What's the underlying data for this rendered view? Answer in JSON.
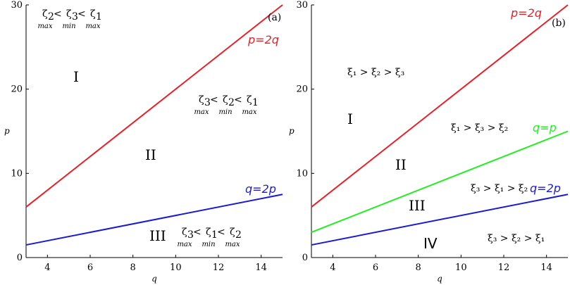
{
  "chart_data": [
    {
      "type": "line",
      "panel_label": "(a)",
      "xlabel": "q",
      "ylabel": "p",
      "xlim": [
        3,
        15
      ],
      "ylim": [
        0,
        30
      ],
      "xticks": [
        "4",
        "6",
        "8",
        "10",
        "12",
        "14"
      ],
      "yticks": [
        "0",
        "10",
        "20",
        "30"
      ],
      "series": [
        {
          "name": "p=2q",
          "color": "#e8202a",
          "x": [
            3,
            15
          ],
          "y": [
            6,
            30
          ]
        },
        {
          "name": "q=2p",
          "color": "#1a1ad4",
          "x": [
            3,
            15
          ],
          "y": [
            1.5,
            7.5
          ]
        }
      ],
      "regions": [
        {
          "label": "I",
          "ineq": [
            "ζ",
            "2",
            "max",
            " < ",
            "ζ",
            "3",
            "min",
            " < ",
            "ζ",
            "1",
            "max"
          ]
        },
        {
          "label": "II",
          "ineq": [
            "ζ",
            "3",
            "max",
            " < ",
            "ζ",
            "2",
            "min",
            " < ",
            "ζ",
            "1",
            "max"
          ]
        },
        {
          "label": "III",
          "ineq": [
            "ζ",
            "3",
            "max",
            " < ",
            "ζ",
            "1",
            "min",
            " < ",
            "ζ",
            "2",
            "max"
          ]
        }
      ]
    },
    {
      "type": "line",
      "panel_label": "(b)",
      "xlabel": "q",
      "ylabel": "p",
      "xlim": [
        3,
        15
      ],
      "ylim": [
        0,
        30
      ],
      "xticks": [
        "4",
        "6",
        "8",
        "10",
        "12",
        "14"
      ],
      "yticks": [
        "0",
        "10",
        "20",
        "30"
      ],
      "series": [
        {
          "name": "p=2q",
          "color": "#e8202a",
          "x": [
            3,
            15
          ],
          "y": [
            6,
            30
          ]
        },
        {
          "name": "q=p",
          "color": "#22ee22",
          "x": [
            3,
            15
          ],
          "y": [
            3,
            15
          ]
        },
        {
          "name": "q=2p",
          "color": "#1a1ad4",
          "x": [
            3,
            15
          ],
          "y": [
            1.5,
            7.5
          ]
        }
      ],
      "regions": [
        {
          "label": "I",
          "ineq": "ξ₁ > ξ₂ > ξ₃"
        },
        {
          "label": "II",
          "ineq": "ξ₁ > ξ₃ > ξ₂"
        },
        {
          "label": "III",
          "ineq": "ξ₃ > ξ₁ > ξ₂"
        },
        {
          "label": "IV",
          "ineq": "ξ₃ > ξ₂ > ξ₁"
        }
      ]
    }
  ]
}
